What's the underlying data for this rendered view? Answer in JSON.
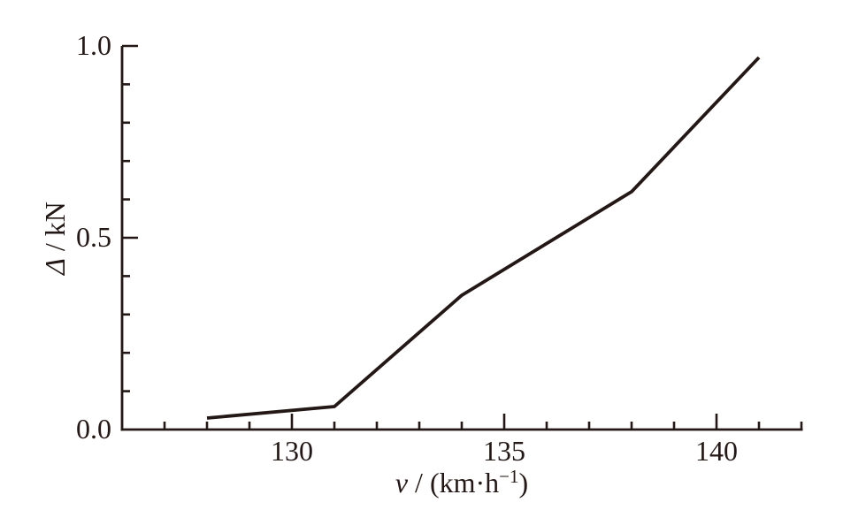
{
  "figure": {
    "background": "#ffffff"
  },
  "chart_data": {
    "type": "line",
    "title": "",
    "xlabel": "v / (km·h⁻¹)",
    "ylabel": "Δ / kN",
    "xlabel_parts": {
      "variable": "v",
      "unit_prefix": " / (km·h",
      "superscript": "−1",
      "unit_suffix": ")"
    },
    "ylabel_parts": {
      "variable": "Δ",
      "unit": " / kN"
    },
    "series": [
      {
        "name": "delta-vs-speed",
        "x": [
          128,
          131,
          134,
          138,
          141
        ],
        "y": [
          0.03,
          0.06,
          0.35,
          0.62,
          0.97
        ]
      }
    ],
    "xlim": [
      126,
      142
    ],
    "ylim": [
      0,
      1.0
    ],
    "x_major_ticks": [
      130,
      135,
      140
    ],
    "x_tick_labels": [
      "130",
      "135",
      "140"
    ],
    "x_minor_step": 1,
    "y_major_ticks": [
      0.5,
      1.0
    ],
    "y_label_values": [
      0,
      0.5,
      1.0
    ],
    "y_tick_labels": [
      "0.0",
      "0.5",
      "1.0"
    ],
    "y_minor_step": 0.1,
    "grid": false,
    "legend": false,
    "line_color": "#231815",
    "axis_color": "#231815",
    "text_color": "#231815"
  }
}
